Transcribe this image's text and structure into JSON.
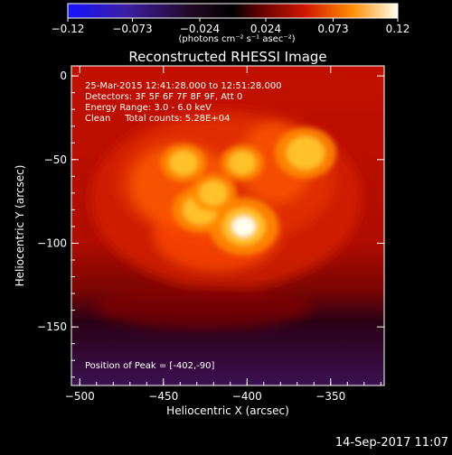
{
  "colorbar": {
    "ticks": [
      {
        "v": -0.12,
        "label": "−0.12"
      },
      {
        "v": -0.073,
        "label": "−0.073"
      },
      {
        "v": -0.024,
        "label": "−0.024"
      },
      {
        "v": 0.024,
        "label": "0.024"
      },
      {
        "v": 0.073,
        "label": "0.073"
      },
      {
        "v": 0.12,
        "label": "0.12"
      }
    ],
    "range": [
      -0.12,
      0.12
    ],
    "units": "(photons cm⁻² s⁻¹ asec⁻²)"
  },
  "header": {
    "title": "Reconstructed RHESSI Image"
  },
  "annotation": {
    "lines": [
      "25-Mar-2015 12:41:28.000 to 12:51:28.000",
      "Detectors: 3F 5F 6F 7F 8F 9F, Att 0",
      "Energy Range: 3.0 - 6.0 keV",
      "Clean     Total counts: 5.28E+04"
    ],
    "peak": "Position of Peak = [-402,-90]"
  },
  "footer": {
    "date": "14-Sep-2017 11:07"
  },
  "chart_data": {
    "type": "heatmap",
    "title": "Reconstructed RHESSI Image",
    "xlabel": "Heliocentric X (arcsec)",
    "ylabel": "Heliocentric Y (arcsec)",
    "xlim": [
      -505,
      -318
    ],
    "ylim": [
      -185,
      6
    ],
    "x_ticks": [
      {
        "v": -500,
        "label": "−500"
      },
      {
        "v": -450,
        "label": "−450"
      },
      {
        "v": -400,
        "label": "−400"
      },
      {
        "v": -350,
        "label": "−350"
      }
    ],
    "y_ticks": [
      {
        "v": 0,
        "label": "0"
      },
      {
        "v": -50,
        "label": "−50"
      },
      {
        "v": -100,
        "label": "−100"
      },
      {
        "v": -150,
        "label": "−150"
      }
    ],
    "peak_position": [
      -402,
      -90
    ],
    "sources": [
      {
        "x": -402,
        "y": -90,
        "value": 0.12
      },
      {
        "x": -428,
        "y": -80,
        "value": 0.085
      },
      {
        "x": -365,
        "y": -46,
        "value": 0.1
      },
      {
        "x": -438,
        "y": -52,
        "value": 0.06
      },
      {
        "x": -403,
        "y": -52,
        "value": 0.055
      },
      {
        "x": -420,
        "y": -70,
        "value": 0.06
      }
    ]
  }
}
